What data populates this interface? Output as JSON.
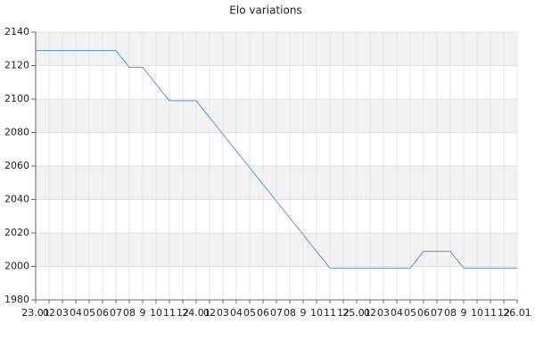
{
  "chart_data": {
    "type": "line",
    "title": "Elo variations",
    "categories": [
      "23.01",
      "02",
      "03",
      "04",
      "05",
      "06",
      "07",
      "08",
      "9",
      "10",
      "11",
      "12",
      "24.01",
      "02",
      "03",
      "04",
      "05",
      "06",
      "07",
      "08",
      "9",
      "10",
      "11",
      "12",
      "25.01",
      "02",
      "03",
      "04",
      "05",
      "06",
      "07",
      "08",
      "9",
      "10",
      "11",
      "12",
      "26.01"
    ],
    "series": [
      {
        "name": "Elo",
        "color": "#5b8fd6",
        "values": [
          2129,
          2129,
          2129,
          2129,
          2129,
          2129,
          2129,
          2119,
          2119,
          2109,
          2099,
          2099,
          2099,
          2089,
          2079,
          2069,
          2059,
          2049,
          2039,
          2029,
          2019,
          2009,
          1999,
          1999,
          1999,
          1999,
          1999,
          1999,
          1999,
          2009,
          2009,
          2009,
          1999,
          1999,
          1999,
          1999,
          1999
        ]
      }
    ],
    "ylim": [
      1980,
      2140
    ],
    "yticks": [
      1980,
      2000,
      2020,
      2040,
      2060,
      2080,
      2100,
      2120,
      2140
    ],
    "grid": true
  }
}
